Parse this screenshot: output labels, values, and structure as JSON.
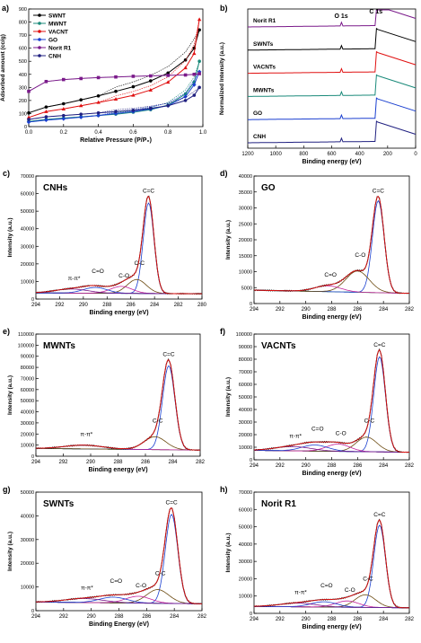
{
  "figure": {
    "panels": [
      {
        "id": "a",
        "tag": "a)",
        "kind": "bet",
        "xlabel": "Relative Pressure (P/P₀)",
        "ylabel": "Adsorbed amount (cc/g)",
        "xlim": [
          0,
          1
        ],
        "ylim": [
          0,
          900
        ],
        "xticks": [
          "0.0",
          "0.2",
          "0.4",
          "0.6",
          "0.8",
          "1.0"
        ],
        "yticks": [
          "0",
          "100",
          "200",
          "300",
          "400",
          "500",
          "600",
          "700",
          "800",
          "900"
        ],
        "legend": [
          {
            "name": "SWNT",
            "color": "#000000",
            "marker": "circle"
          },
          {
            "name": "MWNT",
            "color": "#1a8a7a",
            "marker": "circle"
          },
          {
            "name": "VACNT",
            "color": "#e01010",
            "marker": "triangle"
          },
          {
            "name": "GO",
            "color": "#1a3fd0",
            "marker": "diamond"
          },
          {
            "name": "Norit R1",
            "color": "#7a1a8a",
            "marker": "square"
          },
          {
            "name": "CNH",
            "color": "#202080",
            "marker": "circle"
          }
        ]
      },
      {
        "id": "b",
        "tag": "b)",
        "kind": "survey",
        "xlabel": "Binding energy (eV)",
        "ylabel": "Normalized Intensity (a.u.)",
        "xlim": [
          1200,
          0
        ],
        "xticks": [
          "1200",
          "1000",
          "800",
          "600",
          "400",
          "200",
          "0"
        ],
        "peak_labels": [
          "O 1s",
          "C 1s"
        ],
        "traces": [
          {
            "name": "Norit R1",
            "color": "#7a1a8a"
          },
          {
            "name": "SWNTs",
            "color": "#000000"
          },
          {
            "name": "VACNTs",
            "color": "#e01010"
          },
          {
            "name": "MWNTs",
            "color": "#1a8a7a"
          },
          {
            "name": "GO",
            "color": "#1a3fd0"
          },
          {
            "name": "CNH",
            "color": "#202080"
          }
        ]
      },
      {
        "id": "c",
        "tag": "c)",
        "kind": "xps",
        "title": "CNHs",
        "xlabel": "Binding energy (eV)",
        "ylabel": "Intensity (a.u.)",
        "xlim": [
          294,
          280
        ],
        "xticks": [
          "294",
          "292",
          "290",
          "288",
          "286",
          "284",
          "282",
          "280"
        ],
        "ylim": [
          0,
          70000
        ],
        "yticks": [
          "0",
          "10000",
          "20000",
          "30000",
          "40000",
          "50000",
          "60000",
          "70000"
        ],
        "peak_pos": 284.5,
        "peak_h": 66000,
        "bg": [
          3500,
          3000
        ],
        "components": [
          {
            "label": "C=C",
            "pos": 284.5
          },
          {
            "label": "C-C",
            "pos": 285.5
          },
          {
            "label": "C-O",
            "pos": 286.8
          },
          {
            "label": "C=O",
            "pos": 289.0
          },
          {
            "label": "π-π*",
            "pos": 291.0
          }
        ]
      },
      {
        "id": "d",
        "tag": "d)",
        "kind": "xps",
        "title": "GO",
        "xlabel": "Binding energy (eV)",
        "ylabel": "Intensity (a.u.)",
        "xlim": [
          294,
          282
        ],
        "xticks": [
          "294",
          "292",
          "290",
          "288",
          "286",
          "284",
          "282"
        ],
        "ylim": [
          0,
          40000
        ],
        "yticks": [
          "0",
          "5000",
          "10000",
          "15000",
          "20000",
          "25000",
          "30000",
          "35000",
          "40000"
        ],
        "peak_pos": 284.4,
        "peak_h": 37000,
        "bg": [
          4200,
          3200
        ],
        "components": [
          {
            "label": "C=C",
            "pos": 284.4
          },
          {
            "label": "C-O",
            "pos": 286.0
          },
          {
            "label": "C=O",
            "pos": 288.3
          }
        ]
      },
      {
        "id": "e",
        "tag": "e)",
        "kind": "xps",
        "title": "MWNTs",
        "xlabel": "Binding energy (eV)",
        "ylabel": "Intensity (a.u.)",
        "xlim": [
          294,
          282
        ],
        "xticks": [
          "294",
          "292",
          "290",
          "288",
          "286",
          "284",
          "282"
        ],
        "ylim": [
          0,
          110000
        ],
        "yticks": [
          "0",
          "10000",
          "20000",
          "30000",
          "40000",
          "50000",
          "60000",
          "70000",
          "80000",
          "90000",
          "100000",
          "110000"
        ],
        "peak_pos": 284.3,
        "peak_h": 97000,
        "bg": [
          7000,
          5500
        ],
        "components": [
          {
            "label": "C=C",
            "pos": 284.3
          },
          {
            "label": "C-C",
            "pos": 285.3
          },
          {
            "label": "π-π*",
            "pos": 290.5
          }
        ]
      },
      {
        "id": "f",
        "tag": "f)",
        "kind": "xps",
        "title": "VACNTs",
        "xlabel": "Binding energy (eV)",
        "ylabel": "Intensity (a.u.)",
        "xlim": [
          294,
          282
        ],
        "xticks": [
          "294",
          "292",
          "290",
          "288",
          "286",
          "284",
          "282"
        ],
        "ylim": [
          0,
          100000
        ],
        "yticks": [
          "0",
          "10000",
          "20000",
          "30000",
          "40000",
          "50000",
          "60000",
          "70000",
          "80000",
          "90000",
          "100000"
        ],
        "peak_pos": 284.3,
        "peak_h": 97000,
        "bg": [
          7500,
          6000
        ],
        "components": [
          {
            "label": "C=C",
            "pos": 284.3
          },
          {
            "label": "C-C",
            "pos": 285.3
          },
          {
            "label": "C-O",
            "pos": 287.5
          },
          {
            "label": "C=O",
            "pos": 289.3
          },
          {
            "label": "π-π*",
            "pos": 291.0
          }
        ]
      },
      {
        "id": "g",
        "tag": "g)",
        "kind": "xps",
        "title": "SWNTs",
        "xlabel": "Binding Energy (eV)",
        "ylabel": "Intensity (a.u.)",
        "xlim": [
          294,
          282
        ],
        "xticks": [
          "294",
          "292",
          "290",
          "288",
          "286",
          "284",
          "282"
        ],
        "ylim": [
          0,
          55000
        ],
        "yticks": [
          "0",
          "10000",
          "20000",
          "30000",
          "40000",
          "50000"
        ],
        "peak_pos": 284.2,
        "peak_h": 53000,
        "bg": [
          4000,
          3200
        ],
        "components": [
          {
            "label": "C=C",
            "pos": 284.2
          },
          {
            "label": "C-C",
            "pos": 285.2
          },
          {
            "label": "C-O",
            "pos": 286.6
          },
          {
            "label": "C=O",
            "pos": 288.4
          },
          {
            "label": "π-π*",
            "pos": 290.5
          }
        ]
      },
      {
        "id": "h",
        "tag": "h)",
        "kind": "xps",
        "title": "Norit R1",
        "xlabel": "Binding energy (eV)",
        "ylabel": "Intensity (a.u.)",
        "xlim": [
          294,
          282
        ],
        "xticks": [
          "294",
          "292",
          "290",
          "288",
          "286",
          "284",
          "282"
        ],
        "ylim": [
          0,
          70000
        ],
        "yticks": [
          "0",
          "10000",
          "20000",
          "30000",
          "40000",
          "50000",
          "60000",
          "70000"
        ],
        "peak_pos": 284.3,
        "peak_h": 61000,
        "bg": [
          4000,
          3200
        ],
        "components": [
          {
            "label": "C=C",
            "pos": 284.3
          },
          {
            "label": "C-C",
            "pos": 285.4
          },
          {
            "label": "C-O",
            "pos": 286.8
          },
          {
            "label": "C=O",
            "pos": 288.6
          },
          {
            "label": "π-π*",
            "pos": 290.6
          }
        ]
      }
    ]
  },
  "chart_data": [
    {
      "type": "line",
      "panel": "a",
      "xlabel": "Relative Pressure (P/P₀)",
      "ylabel": "Adsorbed amount (cc/g)",
      "xlim": [
        0,
        1
      ],
      "ylim": [
        0,
        900
      ],
      "x": [
        0.0,
        0.1,
        0.2,
        0.3,
        0.4,
        0.5,
        0.6,
        0.7,
        0.8,
        0.9,
        0.95,
        0.98
      ],
      "series": [
        {
          "name": "SWNT",
          "values": [
            105,
            150,
            175,
            205,
            235,
            270,
            305,
            350,
            410,
            510,
            600,
            740
          ]
        },
        {
          "name": "MWNT",
          "values": [
            40,
            55,
            65,
            75,
            85,
            95,
            110,
            130,
            165,
            250,
            340,
            500
          ]
        },
        {
          "name": "VACNT",
          "values": [
            70,
            115,
            135,
            160,
            185,
            210,
            240,
            280,
            340,
            450,
            560,
            820
          ]
        },
        {
          "name": "GO",
          "values": [
            35,
            50,
            60,
            72,
            85,
            100,
            115,
            135,
            160,
            230,
            320,
            420
          ]
        },
        {
          "name": "Norit R1",
          "values": [
            270,
            345,
            360,
            368,
            375,
            380,
            385,
            388,
            392,
            395,
            400,
            405
          ]
        },
        {
          "name": "CNH",
          "values": [
            55,
            75,
            85,
            95,
            105,
            115,
            125,
            140,
            160,
            200,
            240,
            300
          ]
        }
      ]
    },
    {
      "type": "line",
      "panel": "b",
      "xlabel": "Binding energy (eV)",
      "ylabel": "Normalized Intensity (a.u.)",
      "xlim": [
        1200,
        0
      ],
      "peaks": [
        {
          "label": "O 1s",
          "x": 532
        },
        {
          "label": "C 1s",
          "x": 284.5
        }
      ],
      "series": [
        {
          "name": "Norit R1"
        },
        {
          "name": "SWNTs"
        },
        {
          "name": "VACNTs"
        },
        {
          "name": "MWNTs"
        },
        {
          "name": "GO"
        },
        {
          "name": "CNH"
        }
      ]
    },
    {
      "type": "line",
      "panel": "c",
      "title": "CNHs",
      "x_peak": 284.5,
      "y_peak": 66000,
      "ylim": [
        0,
        70000
      ]
    },
    {
      "type": "line",
      "panel": "d",
      "title": "GO",
      "x_peak": 284.4,
      "y_peak": 37000,
      "ylim": [
        0,
        40000
      ]
    },
    {
      "type": "line",
      "panel": "e",
      "title": "MWNTs",
      "x_peak": 284.3,
      "y_peak": 97000,
      "ylim": [
        0,
        110000
      ]
    },
    {
      "type": "line",
      "panel": "f",
      "title": "VACNTs",
      "x_peak": 284.3,
      "y_peak": 97000,
      "ylim": [
        0,
        100000
      ]
    },
    {
      "type": "line",
      "panel": "g",
      "title": "SWNTs",
      "x_peak": 284.2,
      "y_peak": 53000,
      "ylim": [
        0,
        55000
      ]
    },
    {
      "type": "line",
      "panel": "h",
      "title": "Norit R1",
      "x_peak": 284.3,
      "y_peak": 61000,
      "ylim": [
        0,
        70000
      ]
    }
  ]
}
